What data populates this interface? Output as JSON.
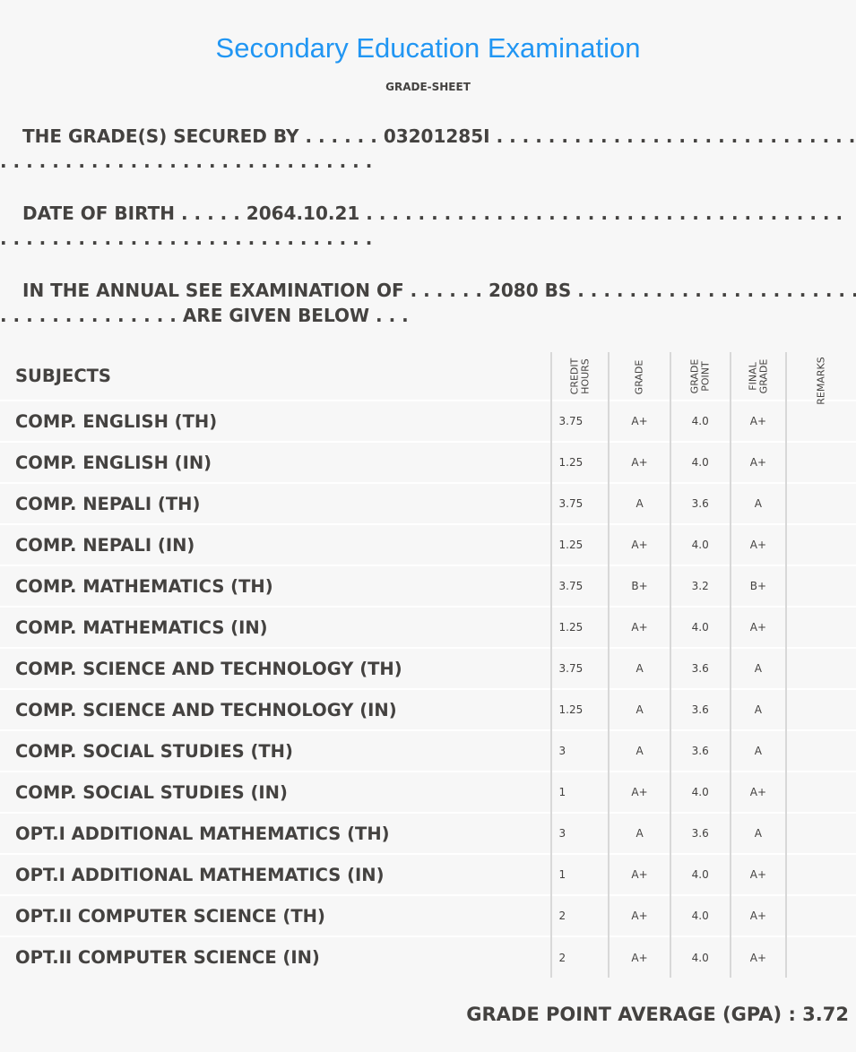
{
  "header": {
    "title": "Secondary Education Examination",
    "subtitle": "GRADE-SHEET"
  },
  "info": {
    "secured_by": {
      "label": "THE GRADE(S) SECURED BY",
      "dots_before": ". . . . . .",
      "value": "03201285I",
      "dots_after": ". . . . . . . . . . . . . . . . . . . . . . . . . . . . . . . . . . . .",
      "line2": ". . . . . . . . . . . . . . . . . . . . . . . . . . . . ."
    },
    "dob": {
      "label": "DATE OF BIRTH",
      "dots_before": ". . . . .",
      "value": "2064.10.21",
      "dots_after": ". . . . . . . . . . . . . . . . . . . . . . . . . . . . . . . . . . . . .",
      "line2": ". . . . . . . . . . . . . . . . . . . . . . . . . . . . ."
    },
    "exam": {
      "label": "IN THE ANNUAL SEE EXAMINATION OF",
      "dots_before": ". . . . . .",
      "value": "2080 BS",
      "dots_after": ". . . . . . . . . . . . . . . . . . . . . . . . . . . . . . .",
      "line2_dots": ". . . . . . . . . . . . . .",
      "line2_text": "ARE GIVEN BELOW . . ."
    }
  },
  "table": {
    "headers": {
      "subjects": "SUBJECTS",
      "credit_hours": "CREDIT\nHOURS",
      "grade": "GRADE",
      "grade_point": "GRADE\nPOINT",
      "final_grade": "FINAL\nGRADE",
      "remarks": "REMARKS"
    },
    "rows": [
      {
        "subject": "COMP. ENGLISH (TH)",
        "credit": "3.75",
        "grade": "A+",
        "gp": "4.0",
        "final": "A+",
        "remarks": ""
      },
      {
        "subject": "COMP. ENGLISH (IN)",
        "credit": "1.25",
        "grade": "A+",
        "gp": "4.0",
        "final": "A+",
        "remarks": ""
      },
      {
        "subject": "COMP. NEPALI (TH)",
        "credit": "3.75",
        "grade": "A",
        "gp": "3.6",
        "final": "A",
        "remarks": ""
      },
      {
        "subject": "COMP. NEPALI (IN)",
        "credit": "1.25",
        "grade": "A+",
        "gp": "4.0",
        "final": "A+",
        "remarks": ""
      },
      {
        "subject": "COMP. MATHEMATICS (TH)",
        "credit": "3.75",
        "grade": "B+",
        "gp": "3.2",
        "final": "B+",
        "remarks": ""
      },
      {
        "subject": "COMP. MATHEMATICS (IN)",
        "credit": "1.25",
        "grade": "A+",
        "gp": "4.0",
        "final": "A+",
        "remarks": ""
      },
      {
        "subject": "COMP. SCIENCE AND TECHNOLOGY (TH)",
        "credit": "3.75",
        "grade": "A",
        "gp": "3.6",
        "final": "A",
        "remarks": ""
      },
      {
        "subject": "COMP. SCIENCE AND TECHNOLOGY (IN)",
        "credit": "1.25",
        "grade": "A",
        "gp": "3.6",
        "final": "A",
        "remarks": ""
      },
      {
        "subject": "COMP. SOCIAL STUDIES (TH)",
        "credit": "3",
        "grade": "A",
        "gp": "3.6",
        "final": "A",
        "remarks": ""
      },
      {
        "subject": "COMP. SOCIAL STUDIES (IN)",
        "credit": "1",
        "grade": "A+",
        "gp": "4.0",
        "final": "A+",
        "remarks": ""
      },
      {
        "subject": "OPT.I ADDITIONAL MATHEMATICS (TH)",
        "credit": "3",
        "grade": "A",
        "gp": "3.6",
        "final": "A",
        "remarks": ""
      },
      {
        "subject": "OPT.I ADDITIONAL MATHEMATICS (IN)",
        "credit": "1",
        "grade": "A+",
        "gp": "4.0",
        "final": "A+",
        "remarks": ""
      },
      {
        "subject": "OPT.II COMPUTER SCIENCE (TH)",
        "credit": "2",
        "grade": "A+",
        "gp": "4.0",
        "final": "A+",
        "remarks": ""
      },
      {
        "subject": "OPT.II COMPUTER SCIENCE (IN)",
        "credit": "2",
        "grade": "A+",
        "gp": "4.0",
        "final": "A+",
        "remarks": ""
      }
    ]
  },
  "gpa": {
    "label": "GRADE POINT AVERAGE (GPA) :",
    "value": "3.72"
  },
  "colors": {
    "title": "#2196f3",
    "text": "#444240",
    "background": "#f7f7f7"
  }
}
